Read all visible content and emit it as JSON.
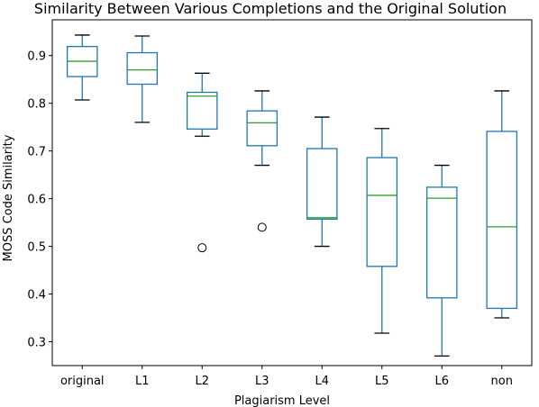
{
  "chart_data": {
    "type": "box",
    "title": "Similarity Between Various Completions and the Original Solution",
    "xlabel": "Plagiarism Level",
    "ylabel": "MOSS Code Similarity",
    "categories": [
      "original",
      "L1",
      "L2",
      "L3",
      "L4",
      "L5",
      "L6",
      "non"
    ],
    "ylim": [
      0.25,
      0.975
    ],
    "yticks": [
      0.3,
      0.4,
      0.5,
      0.6,
      0.7,
      0.8,
      0.9
    ],
    "ytick_labels": [
      "0.3",
      "0.4",
      "0.5",
      "0.6",
      "0.7",
      "0.8",
      "0.9"
    ],
    "grid": false,
    "box_color": "#1f77b4",
    "median_color": "#2ca02c",
    "boxes": [
      {
        "category": "original",
        "whisker_low": 0.807,
        "q1": 0.856,
        "median": 0.888,
        "q3": 0.919,
        "whisker_high": 0.943,
        "outliers": []
      },
      {
        "category": "L1",
        "whisker_low": 0.76,
        "q1": 0.84,
        "median": 0.87,
        "q3": 0.906,
        "whisker_high": 0.941,
        "outliers": []
      },
      {
        "category": "L2",
        "whisker_low": 0.731,
        "q1": 0.746,
        "median": 0.815,
        "q3": 0.823,
        "whisker_high": 0.863,
        "outliers": [
          0.497
        ]
      },
      {
        "category": "L3",
        "whisker_low": 0.67,
        "q1": 0.711,
        "median": 0.759,
        "q3": 0.784,
        "whisker_high": 0.826,
        "outliers": [
          0.54
        ]
      },
      {
        "category": "L4",
        "whisker_low": 0.5,
        "q1": 0.557,
        "median": 0.56,
        "q3": 0.705,
        "whisker_high": 0.771,
        "outliers": []
      },
      {
        "category": "L5",
        "whisker_low": 0.318,
        "q1": 0.458,
        "median": 0.607,
        "q3": 0.686,
        "whisker_high": 0.747,
        "outliers": []
      },
      {
        "category": "L6",
        "whisker_low": 0.27,
        "q1": 0.392,
        "median": 0.601,
        "q3": 0.624,
        "whisker_high": 0.67,
        "outliers": []
      },
      {
        "category": "non",
        "whisker_low": 0.35,
        "q1": 0.37,
        "median": 0.541,
        "q3": 0.741,
        "whisker_high": 0.826,
        "outliers": []
      }
    ]
  }
}
